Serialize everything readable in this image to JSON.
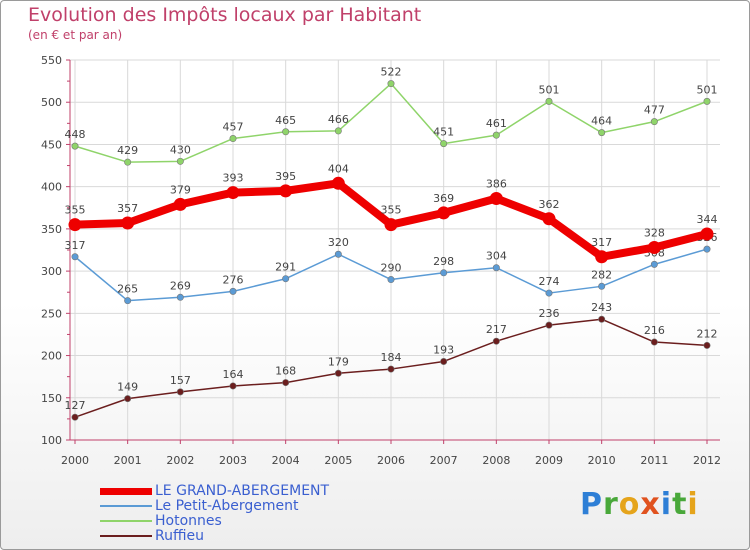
{
  "header": {
    "title": "Evolution des Impôts locaux par Habitant",
    "subtitle": "(en € et par an)"
  },
  "brand": {
    "logo_text": "Proxiti",
    "letters": [
      {
        "char": "P",
        "color": "#2e7fd6"
      },
      {
        "char": "r",
        "color": "#49a83a"
      },
      {
        "char": "o",
        "color": "#e5a41b"
      },
      {
        "char": "x",
        "color": "#e0521f"
      },
      {
        "char": "i",
        "color": "#2e7fd6"
      },
      {
        "char": "t",
        "color": "#49a83a"
      },
      {
        "char": "i",
        "color": "#e5a41b"
      }
    ]
  },
  "colors": {
    "title": "#c0406a",
    "axis": "#c0406a",
    "grid": "#d9d9d9",
    "label": "#444444",
    "legend_text": "#3a5fd0"
  },
  "chart_data": {
    "type": "line",
    "title": "Evolution des Impôts locaux par Habitant",
    "subtitle": "(en € et par an)",
    "xlabel": "",
    "ylabel": "",
    "ylim": [
      100,
      550
    ],
    "yticks": [
      100,
      150,
      200,
      250,
      300,
      350,
      400,
      450,
      500,
      550
    ],
    "grid": true,
    "legend_position": "bottom-left",
    "x": [
      "2000",
      "2001",
      "2002",
      "2003",
      "2004",
      "2005",
      "2006",
      "2007",
      "2008",
      "2009",
      "2010",
      "2011",
      "2012"
    ],
    "series": [
      {
        "name": "LE GRAND-ABERGEMENT",
        "color": "#ee0000",
        "emphasis": true,
        "values": [
          355,
          357,
          379,
          393,
          395,
          404,
          355,
          369,
          386,
          362,
          317,
          328,
          344
        ]
      },
      {
        "name": "Le Petit-Abergement",
        "color": "#5b9bd5",
        "emphasis": false,
        "values": [
          317,
          265,
          269,
          276,
          291,
          320,
          290,
          298,
          304,
          274,
          282,
          308,
          326
        ]
      },
      {
        "name": "Hotonnes",
        "color": "#8fd46a",
        "emphasis": false,
        "values": [
          448,
          429,
          430,
          457,
          465,
          466,
          522,
          451,
          461,
          501,
          464,
          477,
          501
        ]
      },
      {
        "name": "Ruffieu",
        "color": "#6b1e1e",
        "emphasis": false,
        "values": [
          127,
          149,
          157,
          164,
          168,
          179,
          184,
          193,
          217,
          236,
          243,
          216,
          212
        ]
      }
    ]
  }
}
